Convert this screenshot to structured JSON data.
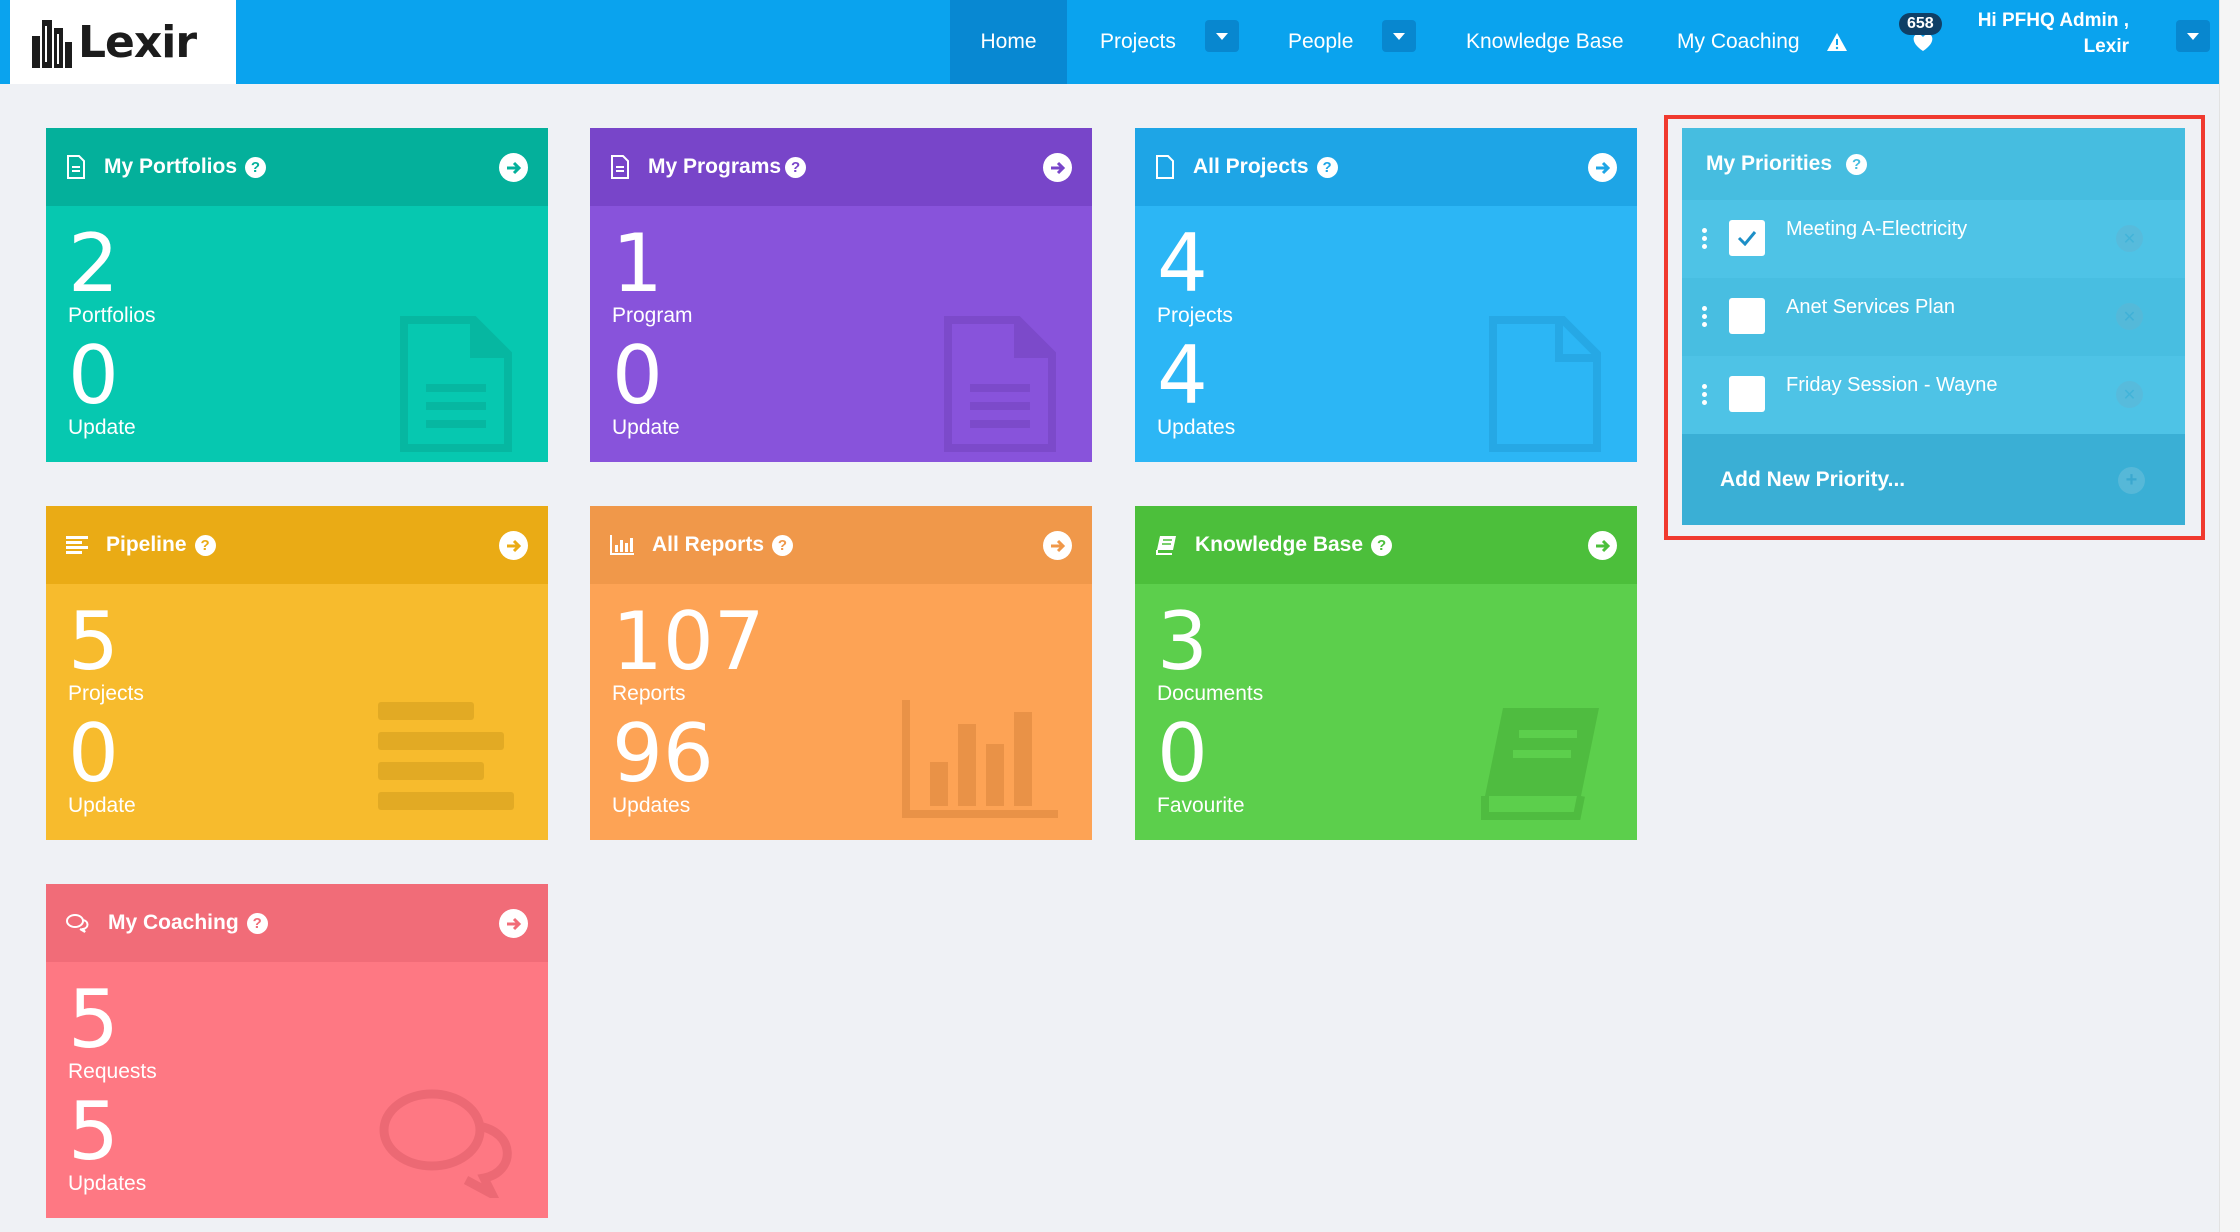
{
  "brand": {
    "name": "Lexir"
  },
  "nav": {
    "home": "Home",
    "projects": "Projects",
    "people": "People",
    "knowledge_base": "Knowledge Base",
    "my_coaching": "My Coaching",
    "notification_count": "658",
    "user_greeting_line1": "Hi PFHQ Admin ,",
    "user_greeting_line2": "Lexir"
  },
  "cards": {
    "portfolios": {
      "title": "My Portfolios",
      "value1": "2",
      "label1": "Portfolios",
      "value2": "0",
      "label2": "Update",
      "color": "#06c8b0"
    },
    "programs": {
      "title": "My Programs",
      "value1": "1",
      "label1": "Program",
      "value2": "0",
      "label2": "Update",
      "color": "#8853db"
    },
    "all_projects": {
      "title": "All Projects",
      "value1": "4",
      "label1": "Projects",
      "value2": "4",
      "label2": "Updates",
      "color": "#2cb6f5"
    },
    "pipeline": {
      "title": "Pipeline",
      "value1": "5",
      "label1": "Projects",
      "value2": "0",
      "label2": "Update",
      "color": "#f7bb2d"
    },
    "reports": {
      "title": "All Reports",
      "value1": "107",
      "label1": "Reports",
      "value2": "96",
      "label2": "Updates",
      "color": "#fda355"
    },
    "knowledge": {
      "title": "Knowledge Base",
      "value1": "3",
      "label1": "Documents",
      "value2": "0",
      "label2": "Favourite",
      "color": "#5ccf4c"
    },
    "coaching": {
      "title": "My Coaching",
      "value1": "5",
      "label1": "Requests",
      "value2": "5",
      "label2": "Updates",
      "color": "#fe7883"
    }
  },
  "priorities": {
    "title": "My Priorities",
    "items": [
      {
        "label": "Meeting A-Electricity",
        "checked": true
      },
      {
        "label": "Anet Services Plan",
        "checked": false
      },
      {
        "label": "Friday Session - Wayne",
        "checked": false
      }
    ],
    "add_label": "Add New Priority..."
  }
}
